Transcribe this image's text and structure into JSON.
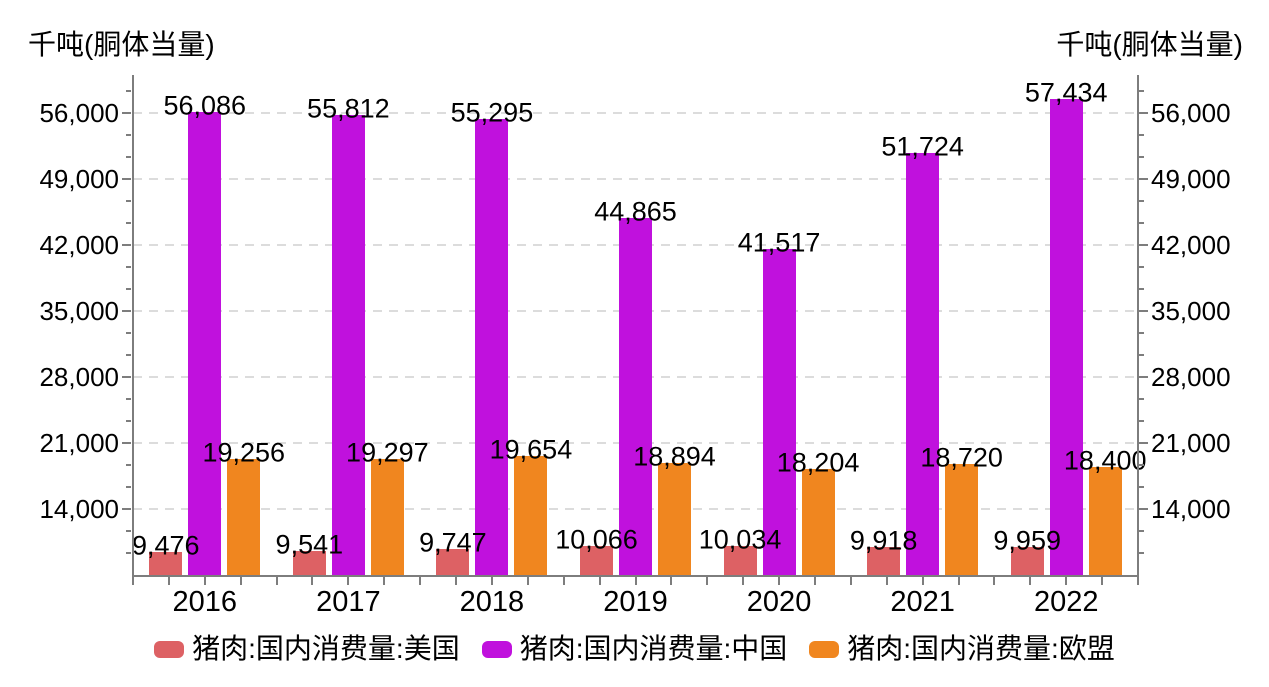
{
  "chart_data": {
    "type": "bar",
    "title": "",
    "unit_label_left": "千吨(胴体当量)",
    "unit_label_right": "千吨(胴体当量)",
    "categories": [
      "2016",
      "2017",
      "2018",
      "2019",
      "2020",
      "2021",
      "2022"
    ],
    "series": [
      {
        "name": "猪肉:国内消费量:美国",
        "color": "#dd6164",
        "values": [
          9476,
          9541,
          9747,
          10066,
          10034,
          9918,
          9959
        ],
        "labels": [
          "9,476",
          "9,541",
          "9,747",
          "10,066",
          "10,034",
          "9,918",
          "9,959"
        ]
      },
      {
        "name": "猪肉:国内消费量:中国",
        "color": "#c011dd",
        "values": [
          56086,
          55812,
          55295,
          44865,
          41517,
          51724,
          57434
        ],
        "labels": [
          "56,086",
          "55,812",
          "55,295",
          "44,865",
          "41,517",
          "51,724",
          "57,434"
        ]
      },
      {
        "name": "猪肉:国内消费量:欧盟",
        "color": "#f0861f",
        "values": [
          19256,
          19297,
          19654,
          18894,
          18204,
          18720,
          18400
        ],
        "labels": [
          "19,256",
          "19,297",
          "19,654",
          "18,894",
          "18,204",
          "18,720",
          "18,400"
        ]
      }
    ],
    "y_axis": {
      "min": 7000,
      "max": 60000,
      "major_ticks": [
        14000,
        21000,
        28000,
        35000,
        42000,
        49000,
        56000
      ],
      "major_tick_labels": [
        "14,000",
        "21,000",
        "28,000",
        "35,000",
        "42,000",
        "49,000",
        "56,000"
      ],
      "minor_divisions": 3,
      "sides": [
        "left",
        "right"
      ],
      "grid": "dashed"
    },
    "x_axis": {
      "minor_ticks_per_group": 4
    },
    "legend_position": "bottom",
    "colors": {
      "grid": "#dcdcdc",
      "axis": "#7d7d7d",
      "text": "#000000"
    }
  }
}
